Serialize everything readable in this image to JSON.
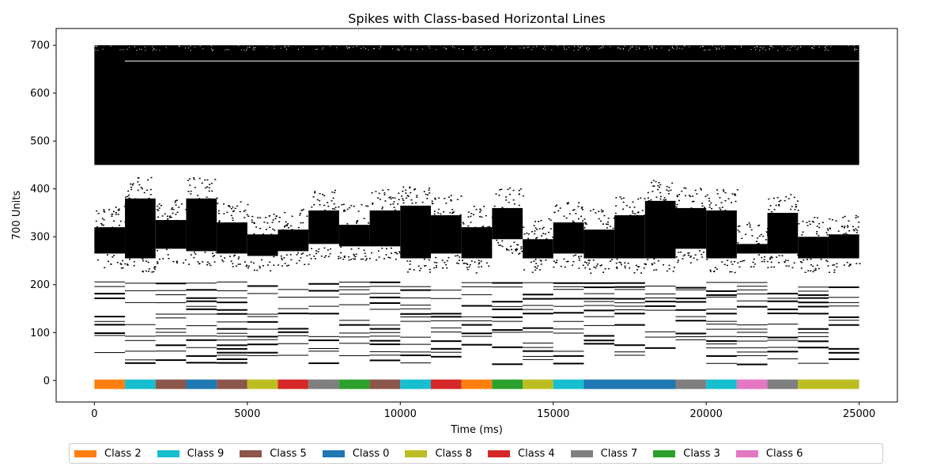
{
  "chart_data": {
    "type": "scatter",
    "title": "Spikes with Class-based Horizontal Lines",
    "xlabel": "Time (ms)",
    "ylabel": "700 Units",
    "xlim": [
      -1250,
      26250
    ],
    "ylim": [
      -45,
      735
    ],
    "xticks": [
      0,
      5000,
      10000,
      15000,
      20000,
      25000
    ],
    "yticks": [
      0,
      100,
      200,
      300,
      400,
      500,
      600,
      700
    ],
    "grid": false,
    "legend_placement": "bottom-center, outside plot",
    "dense_band": {
      "y_range": [
        450,
        700
      ],
      "x_range": [
        0,
        25000
      ]
    },
    "middle_blocks": [
      {
        "x": [
          0,
          1000
        ],
        "y": [
          265,
          320
        ]
      },
      {
        "x": [
          1000,
          2000
        ],
        "y": [
          255,
          380
        ]
      },
      {
        "x": [
          2000,
          3000
        ],
        "y": [
          275,
          335
        ]
      },
      {
        "x": [
          3000,
          4000
        ],
        "y": [
          270,
          380
        ]
      },
      {
        "x": [
          4000,
          5000
        ],
        "y": [
          265,
          330
        ]
      },
      {
        "x": [
          5000,
          6000
        ],
        "y": [
          260,
          305
        ]
      },
      {
        "x": [
          6000,
          7000
        ],
        "y": [
          270,
          315
        ]
      },
      {
        "x": [
          7000,
          8000
        ],
        "y": [
          285,
          355
        ]
      },
      {
        "x": [
          8000,
          9000
        ],
        "y": [
          280,
          325
        ]
      },
      {
        "x": [
          9000,
          10000
        ],
        "y": [
          280,
          355
        ]
      },
      {
        "x": [
          10000,
          11000
        ],
        "y": [
          255,
          365
        ]
      },
      {
        "x": [
          11000,
          12000
        ],
        "y": [
          265,
          345
        ]
      },
      {
        "x": [
          12000,
          13000
        ],
        "y": [
          255,
          320
        ]
      },
      {
        "x": [
          13000,
          14000
        ],
        "y": [
          295,
          360
        ]
      },
      {
        "x": [
          14000,
          15000
        ],
        "y": [
          255,
          295
        ]
      },
      {
        "x": [
          15000,
          16000
        ],
        "y": [
          265,
          330
        ]
      },
      {
        "x": [
          16000,
          17000
        ],
        "y": [
          255,
          315
        ]
      },
      {
        "x": [
          17000,
          18000
        ],
        "y": [
          255,
          345
        ]
      },
      {
        "x": [
          18000,
          19000
        ],
        "y": [
          255,
          375
        ]
      },
      {
        "x": [
          19000,
          20000
        ],
        "y": [
          275,
          360
        ]
      },
      {
        "x": [
          20000,
          21000
        ],
        "y": [
          255,
          355
        ]
      },
      {
        "x": [
          21000,
          22000
        ],
        "y": [
          265,
          285
        ]
      },
      {
        "x": [
          22000,
          23000
        ],
        "y": [
          265,
          350
        ]
      },
      {
        "x": [
          23000,
          24000
        ],
        "y": [
          255,
          300
        ]
      },
      {
        "x": [
          24000,
          25000
        ],
        "y": [
          255,
          305
        ]
      }
    ],
    "class_segments": [
      {
        "class": "Class 2",
        "x": [
          0,
          1000
        ]
      },
      {
        "class": "Class 9",
        "x": [
          1000,
          2000
        ]
      },
      {
        "class": "Class 5",
        "x": [
          2000,
          3000
        ]
      },
      {
        "class": "Class 0",
        "x": [
          3000,
          4000
        ]
      },
      {
        "class": "Class 5",
        "x": [
          4000,
          5000
        ]
      },
      {
        "class": "Class 8",
        "x": [
          5000,
          6000
        ]
      },
      {
        "class": "Class 4",
        "x": [
          6000,
          7000
        ]
      },
      {
        "class": "Class 7",
        "x": [
          7000,
          8000
        ]
      },
      {
        "class": "Class 3",
        "x": [
          8000,
          9000
        ]
      },
      {
        "class": "Class 5",
        "x": [
          9000,
          10000
        ]
      },
      {
        "class": "Class 9",
        "x": [
          10000,
          11000
        ]
      },
      {
        "class": "Class 4",
        "x": [
          11000,
          12000
        ]
      },
      {
        "class": "Class 2",
        "x": [
          12000,
          13000
        ]
      },
      {
        "class": "Class 3",
        "x": [
          13000,
          14000
        ]
      },
      {
        "class": "Class 8",
        "x": [
          14000,
          15000
        ]
      },
      {
        "class": "Class 9",
        "x": [
          15000,
          16000
        ]
      },
      {
        "class": "Class 0",
        "x": [
          16000,
          19000
        ]
      },
      {
        "class": "Class 7",
        "x": [
          19000,
          20000
        ]
      },
      {
        "class": "Class 9",
        "x": [
          20000,
          21000
        ]
      },
      {
        "class": "Class 6",
        "x": [
          21000,
          22000
        ]
      },
      {
        "class": "Class 7",
        "x": [
          22000,
          23000
        ]
      },
      {
        "class": "Class 8",
        "x": [
          23000,
          25000
        ]
      }
    ],
    "class_line_y": -8,
    "legend": [
      {
        "name": "Class 2",
        "color": "#ff7f0e"
      },
      {
        "name": "Class 9",
        "color": "#17becf"
      },
      {
        "name": "Class 5",
        "color": "#8c564b"
      },
      {
        "name": "Class 0",
        "color": "#1f77b4"
      },
      {
        "name": "Class 8",
        "color": "#bcbd22"
      },
      {
        "name": "Class 4",
        "color": "#d62728"
      },
      {
        "name": "Class 7",
        "color": "#7f7f7f"
      },
      {
        "name": "Class 3",
        "color": "#2ca02c"
      },
      {
        "name": "Class 6",
        "color": "#e377c2"
      }
    ]
  }
}
